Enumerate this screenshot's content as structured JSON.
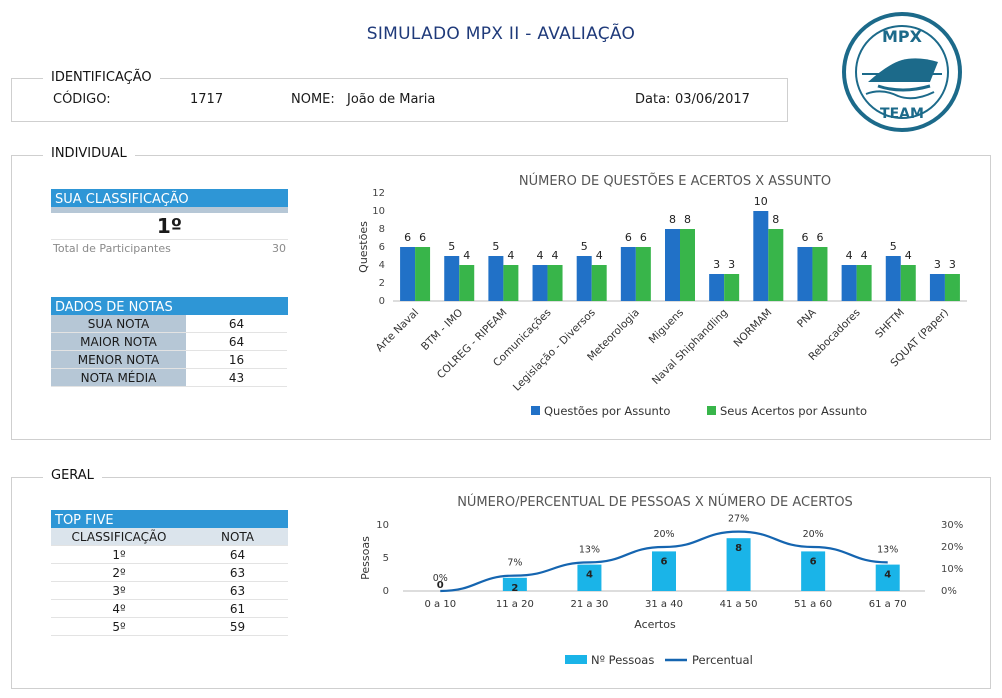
{
  "title": "SIMULADO MPX II - AVALIAÇÃO",
  "logo": {
    "top": "MPX",
    "bottom": "TEAM"
  },
  "identificacao": {
    "section_label": "IDENTIFICAÇÃO",
    "codigo_label": "CÓDIGO:",
    "codigo_value": "1717",
    "nome_label": "NOME:",
    "nome_value": "João de Maria",
    "data_label": "Data:",
    "data_value": "03/06/2017"
  },
  "individual": {
    "section_label": "INDIVIDUAL",
    "classificacao": {
      "header": "SUA CLASSIFICAÇÃO",
      "value": "1º",
      "total_label": "Total de Participantes",
      "total_value": "30"
    },
    "dados_notas": {
      "header": "DADOS DE NOTAS",
      "rows": [
        {
          "label": "SUA NOTA",
          "value": "64"
        },
        {
          "label": "MAIOR NOTA",
          "value": "64"
        },
        {
          "label": "MENOR NOTA",
          "value": "16"
        },
        {
          "label": "NOTA MÉDIA",
          "value": "43"
        }
      ]
    }
  },
  "geral": {
    "section_label": "GERAL",
    "top_five": {
      "header": "TOP FIVE",
      "col1": "CLASSIFICAÇÃO",
      "col2": "NOTA",
      "rows": [
        {
          "rank": "1º",
          "nota": "64"
        },
        {
          "rank": "2º",
          "nota": "63"
        },
        {
          "rank": "3º",
          "nota": "63"
        },
        {
          "rank": "4º",
          "nota": "61"
        },
        {
          "rank": "5º",
          "nota": "59"
        }
      ]
    }
  },
  "colors": {
    "questoes": "#2171c7",
    "acertos": "#38b54a",
    "pessoas": "#1ab4e8",
    "percentual": "#1565b0",
    "header_blue": "#2e96d6",
    "title_navy": "#1f3a7a"
  },
  "chart_data": [
    {
      "type": "bar",
      "title": "NÚMERO DE QUESTÕES E ACERTOS X ASSUNTO",
      "ylabel": "Questões",
      "ylim": [
        0,
        12
      ],
      "yticks": [
        "0",
        "2",
        "4",
        "6",
        "8",
        "10",
        "12"
      ],
      "categories": [
        "Arte Naval",
        "BTM - IMO",
        "COLREG - RIPEAM",
        "Comunicações",
        "Legislação - Diversos",
        "Meteorologia",
        "Miguens",
        "Naval Shiphandling",
        "NORMAM",
        "PNA",
        "Rebocadores",
        "SHFTM",
        "SQUAT (Paper)"
      ],
      "series": [
        {
          "name": "Questões por Assunto",
          "values": [
            6,
            5,
            5,
            4,
            5,
            6,
            8,
            3,
            10,
            6,
            4,
            5,
            3
          ]
        },
        {
          "name": "Seus Acertos por Assunto",
          "values": [
            6,
            4,
            4,
            4,
            4,
            6,
            8,
            3,
            8,
            6,
            4,
            4,
            3
          ]
        }
      ],
      "legend": "bottom"
    },
    {
      "type": "bar",
      "title": "NÚMERO/PERCENTUAL DE PESSOAS X NÚMERO DE ACERTOS",
      "xlabel": "Acertos",
      "ylabel": "Pessoas",
      "ylim": [
        0,
        10
      ],
      "y2lim": [
        0,
        30
      ],
      "yticks": [
        "0",
        "5",
        "10"
      ],
      "y2ticks": [
        "0%",
        "10%",
        "20%",
        "30%"
      ],
      "categories": [
        "0 a 10",
        "11 a 20",
        "21 a 30",
        "31 a 40",
        "41 a 50",
        "51 a 60",
        "61 a 70"
      ],
      "series": [
        {
          "name": "Nº Pessoas",
          "type": "bar",
          "values": [
            0,
            2,
            4,
            6,
            8,
            6,
            4
          ]
        },
        {
          "name": "Percentual",
          "type": "line",
          "values": [
            0,
            7,
            13,
            20,
            27,
            20,
            13
          ],
          "labels": [
            "0%",
            "7%",
            "13%",
            "20%",
            "27%",
            "20%",
            "13%"
          ]
        }
      ],
      "legend": "bottom"
    }
  ]
}
